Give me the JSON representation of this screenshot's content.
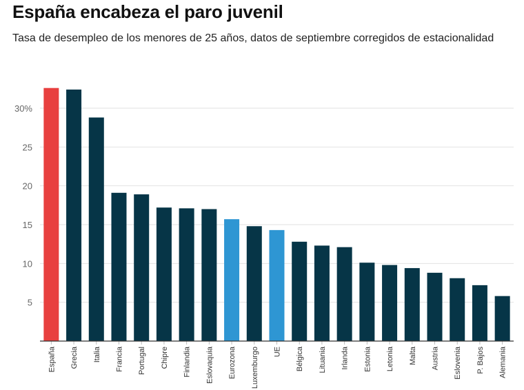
{
  "chart_data": {
    "type": "bar",
    "title": "España encabeza el paro juvenil",
    "subtitle": "Tasa de desempleo de los menores de 25 años, datos de septiembre corregidos de estacionalidad",
    "categories": [
      "España",
      "Grecia",
      "Italia",
      "Francia",
      "Portugal",
      "Chipre",
      "Finlandia",
      "Eslovaquia",
      "Eurozona",
      "Luxemburgo",
      "UE",
      "Bélgica",
      "Lituania",
      "Irlanda",
      "Estonia",
      "Letonia",
      "Malta",
      "Austria",
      "Eslovenia",
      "P. Bajos",
      "Alemania"
    ],
    "values": [
      32.6,
      32.4,
      28.8,
      19.1,
      18.9,
      17.2,
      17.1,
      17.0,
      15.7,
      14.8,
      14.3,
      12.8,
      12.3,
      12.1,
      10.1,
      9.8,
      9.4,
      8.8,
      8.1,
      7.2,
      5.8
    ],
    "bar_colors": [
      "#e8403f",
      "#063547",
      "#063547",
      "#063547",
      "#063547",
      "#063547",
      "#063547",
      "#063547",
      "#2e96d3",
      "#063547",
      "#2e96d3",
      "#063547",
      "#063547",
      "#063547",
      "#063547",
      "#063547",
      "#063547",
      "#063547",
      "#063547",
      "#063547",
      "#063547"
    ],
    "y_ticks": [
      5,
      10,
      15,
      20,
      25,
      30
    ],
    "y_tick_labels": [
      "5",
      "10",
      "15",
      "20",
      "25",
      "30%"
    ],
    "ylim": [
      0,
      35
    ],
    "grid": true,
    "colors": {
      "gridline": "#e2e2e2",
      "axis": "#333333"
    }
  }
}
